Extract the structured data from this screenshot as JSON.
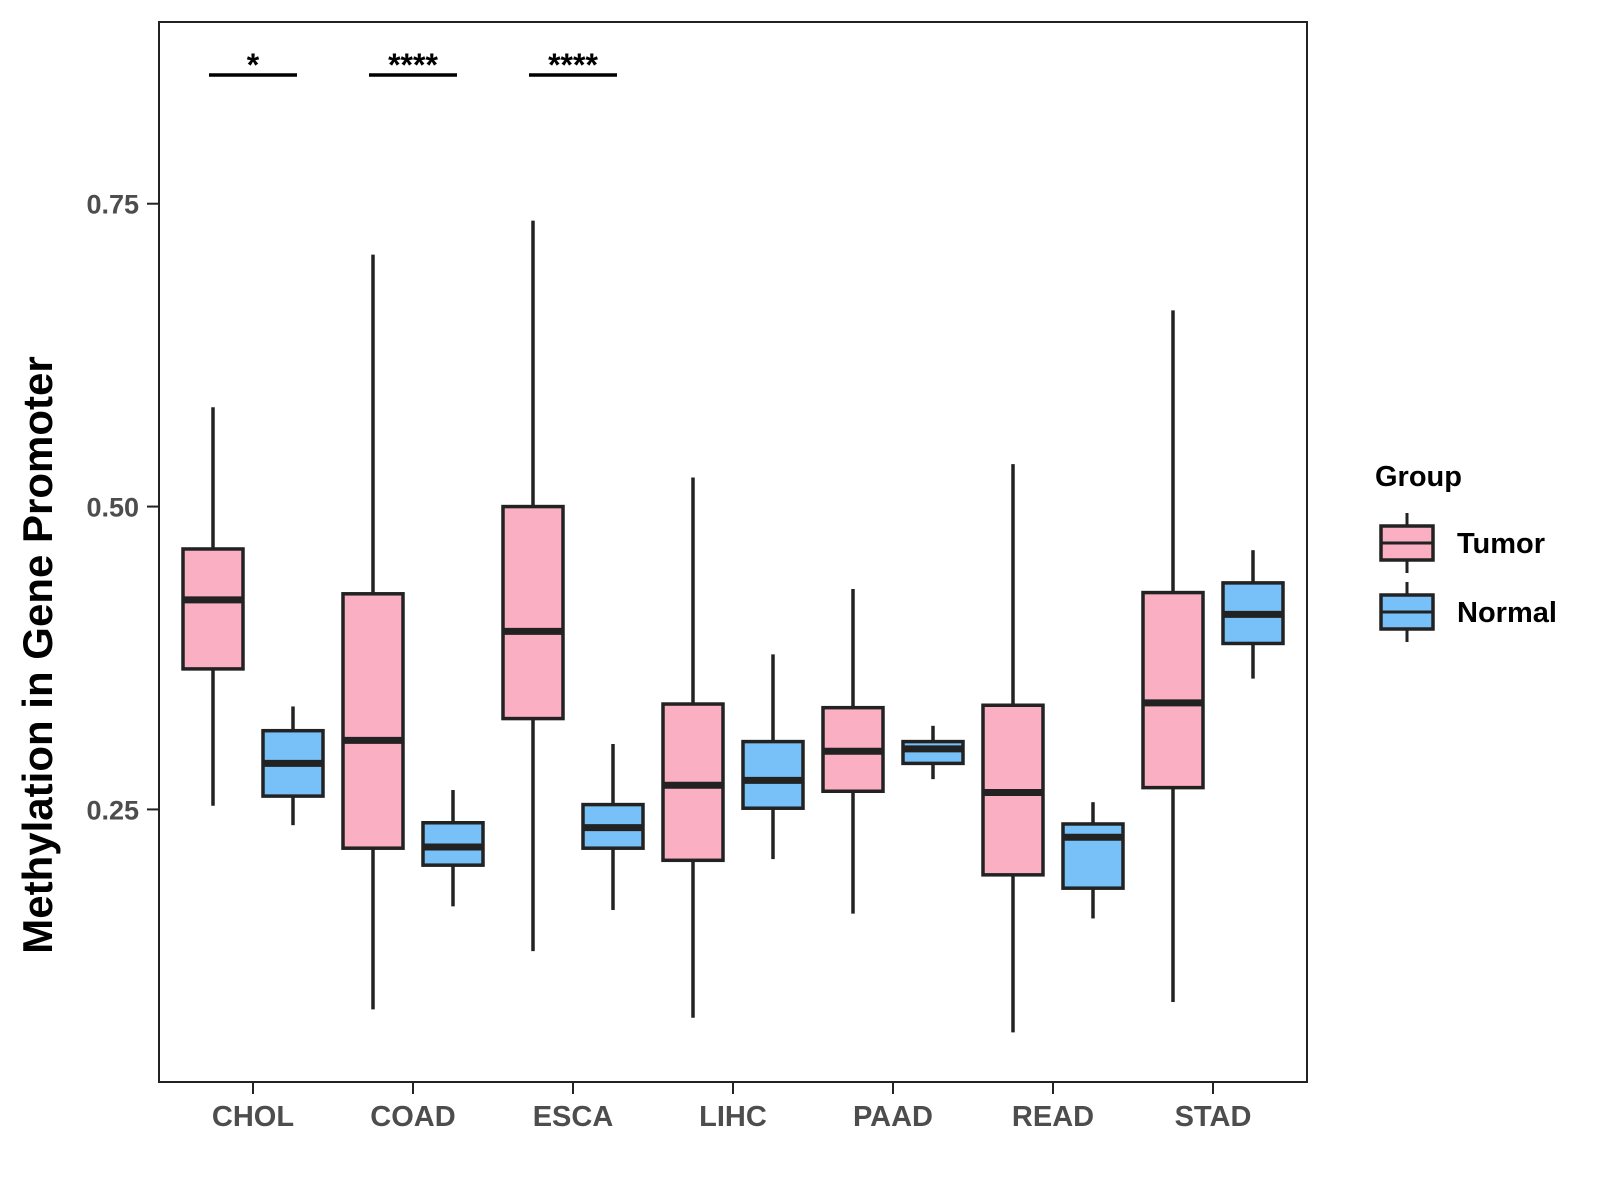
{
  "chart_data": {
    "type": "boxplot",
    "title": "",
    "xlabel": "",
    "ylabel": "Methylation in Gene Promoter",
    "ylim": [
      0.025,
      0.9
    ],
    "yticks": [
      "0.25",
      "0.50",
      "0.75"
    ],
    "ytick_values": [
      0.25,
      0.5,
      0.75
    ],
    "categories": [
      "CHOL",
      "COAD",
      "ESCA",
      "LIHC",
      "PAAD",
      "READ",
      "STAD"
    ],
    "legend": {
      "title": "Group",
      "placement": "right",
      "items": [
        {
          "name": "Tumor",
          "color": "#FAAFC2"
        },
        {
          "name": "Normal",
          "color": "#78C1F8"
        }
      ]
    },
    "series": [
      {
        "name": "Tumor",
        "color": "#FAAFC2",
        "boxes": [
          {
            "min": 0.253,
            "q1": 0.366,
            "median": 0.423,
            "q3": 0.465,
            "max": 0.582
          },
          {
            "min": 0.085,
            "q1": 0.218,
            "median": 0.307,
            "q3": 0.428,
            "max": 0.708
          },
          {
            "min": 0.133,
            "q1": 0.325,
            "median": 0.397,
            "q3": 0.5,
            "max": 0.736
          },
          {
            "min": 0.078,
            "q1": 0.208,
            "median": 0.27,
            "q3": 0.337,
            "max": 0.524
          },
          {
            "min": 0.164,
            "q1": 0.265,
            "median": 0.298,
            "q3": 0.334,
            "max": 0.432
          },
          {
            "min": 0.066,
            "q1": 0.196,
            "median": 0.264,
            "q3": 0.336,
            "max": 0.535
          },
          {
            "min": 0.091,
            "q1": 0.268,
            "median": 0.338,
            "q3": 0.429,
            "max": 0.662
          }
        ]
      },
      {
        "name": "Normal",
        "color": "#78C1F8",
        "boxes": [
          {
            "min": 0.237,
            "q1": 0.261,
            "median": 0.288,
            "q3": 0.315,
            "max": 0.335
          },
          {
            "min": 0.17,
            "q1": 0.204,
            "median": 0.219,
            "q3": 0.239,
            "max": 0.266
          },
          {
            "min": 0.167,
            "q1": 0.218,
            "median": 0.235,
            "q3": 0.254,
            "max": 0.304
          },
          {
            "min": 0.209,
            "q1": 0.251,
            "median": 0.274,
            "q3": 0.306,
            "max": 0.378
          },
          {
            "min": 0.275,
            "q1": 0.288,
            "median": 0.3,
            "q3": 0.306,
            "max": 0.319
          },
          {
            "min": 0.16,
            "q1": 0.185,
            "median": 0.227,
            "q3": 0.238,
            "max": 0.256
          },
          {
            "min": 0.358,
            "q1": 0.387,
            "median": 0.411,
            "q3": 0.437,
            "max": 0.464
          }
        ]
      }
    ],
    "significance": [
      {
        "category": "CHOL",
        "label": "*"
      },
      {
        "category": "COAD",
        "label": "****"
      },
      {
        "category": "ESCA",
        "label": "****"
      }
    ]
  }
}
